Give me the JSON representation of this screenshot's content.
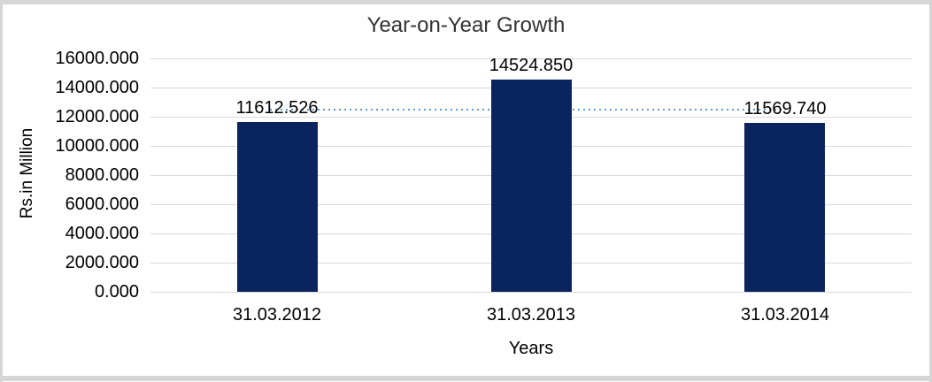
{
  "chart_data": {
    "type": "bar",
    "title": "Year-on-Year Growth",
    "xlabel": "Years",
    "ylabel": "Rs.in Million",
    "categories": [
      "31.03.2012",
      "31.03.2013",
      "31.03.2014"
    ],
    "values": [
      11612.526,
      14524.85,
      11569.74
    ],
    "data_labels": [
      "11612.526",
      "14524.850",
      "11569.740"
    ],
    "ylim": [
      0,
      16000
    ],
    "ytick_step": 2000,
    "ytick_labels_top_down": [
      "16000.000",
      "14000.000",
      "12000.000",
      "10000.000",
      "8000.000",
      "6000.000",
      "4000.000",
      "2000.000",
      "0.000"
    ],
    "grid": true,
    "legend": "none",
    "bar_color": "#0a255e",
    "gridline_color": "#d9d9d9",
    "frame_color": "#d6d6d6",
    "trendline": {
      "style": "dotted",
      "color": "#5b9bd5",
      "approx_level": 12569,
      "span": "first-to-last-category"
    }
  }
}
